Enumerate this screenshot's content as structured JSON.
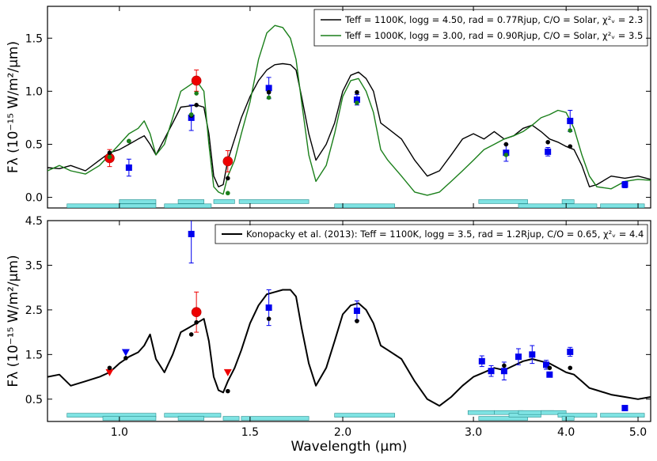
{
  "chart_data": [
    {
      "type": "line",
      "panel": "top",
      "ylabel": "Fλ (10⁻¹⁵ W/m²/μm)",
      "ylim": [
        -0.1,
        1.8
      ],
      "yticks": [
        0.0,
        0.5,
        1.0,
        1.5
      ],
      "ytick_labels": [
        "0.0",
        "0.5",
        "1.0",
        "1.5"
      ],
      "xscale": "log",
      "xlim": [
        0.8,
        5.2
      ],
      "legend_position": "top-right",
      "series": [
        {
          "name": "Teff = 1100K, logg = 4.50, rad = 0.77Rjup, C/O = Solar, χ²ᵥ = 2.3",
          "color": "#000000",
          "x": [
            0.8,
            0.83,
            0.86,
            0.9,
            0.94,
            0.97,
            1.0,
            1.03,
            1.06,
            1.08,
            1.1,
            1.12,
            1.15,
            1.18,
            1.21,
            1.24,
            1.27,
            1.3,
            1.32,
            1.34,
            1.36,
            1.38,
            1.4,
            1.43,
            1.46,
            1.5,
            1.54,
            1.58,
            1.62,
            1.66,
            1.7,
            1.73,
            1.76,
            1.8,
            1.84,
            1.9,
            1.95,
            2.0,
            2.05,
            2.1,
            2.15,
            2.2,
            2.25,
            2.3,
            2.4,
            2.5,
            2.6,
            2.7,
            2.8,
            2.9,
            3.0,
            3.1,
            3.2,
            3.3,
            3.4,
            3.5,
            3.6,
            3.7,
            3.8,
            3.9,
            4.0,
            4.1,
            4.2,
            4.3,
            4.4,
            4.6,
            4.8,
            5.0,
            5.2
          ],
          "y": [
            0.28,
            0.27,
            0.3,
            0.25,
            0.35,
            0.42,
            0.45,
            0.5,
            0.55,
            0.58,
            0.5,
            0.4,
            0.55,
            0.7,
            0.85,
            0.86,
            0.87,
            0.85,
            0.6,
            0.2,
            0.1,
            0.12,
            0.35,
            0.55,
            0.75,
            0.95,
            1.1,
            1.2,
            1.25,
            1.26,
            1.25,
            1.2,
            0.95,
            0.6,
            0.35,
            0.5,
            0.7,
            1.0,
            1.15,
            1.18,
            1.12,
            1.0,
            0.7,
            0.65,
            0.55,
            0.35,
            0.2,
            0.25,
            0.4,
            0.55,
            0.6,
            0.55,
            0.62,
            0.55,
            0.58,
            0.65,
            0.68,
            0.62,
            0.55,
            0.52,
            0.48,
            0.45,
            0.3,
            0.1,
            0.12,
            0.2,
            0.18,
            0.2,
            0.17
          ]
        },
        {
          "name": "Teff = 1000K, logg = 3.00, rad = 0.90Rjup, C/O = Solar, χ²ᵥ = 3.5",
          "color": "#1a7f1a",
          "x": [
            0.8,
            0.83,
            0.86,
            0.9,
            0.94,
            0.97,
            1.0,
            1.03,
            1.06,
            1.08,
            1.1,
            1.12,
            1.15,
            1.18,
            1.21,
            1.24,
            1.27,
            1.3,
            1.32,
            1.34,
            1.36,
            1.38,
            1.4,
            1.43,
            1.46,
            1.5,
            1.54,
            1.58,
            1.62,
            1.66,
            1.7,
            1.73,
            1.76,
            1.8,
            1.84,
            1.9,
            1.95,
            2.0,
            2.05,
            2.1,
            2.15,
            2.2,
            2.25,
            2.3,
            2.4,
            2.5,
            2.6,
            2.7,
            2.8,
            2.9,
            3.0,
            3.1,
            3.2,
            3.3,
            3.4,
            3.5,
            3.6,
            3.7,
            3.8,
            3.9,
            4.0,
            4.1,
            4.2,
            4.3,
            4.4,
            4.6,
            4.8,
            5.0,
            5.2
          ],
          "y": [
            0.25,
            0.3,
            0.25,
            0.22,
            0.3,
            0.4,
            0.5,
            0.6,
            0.65,
            0.72,
            0.6,
            0.4,
            0.5,
            0.75,
            1.0,
            1.05,
            1.1,
            1.0,
            0.5,
            0.1,
            0.05,
            0.03,
            0.2,
            0.35,
            0.6,
            0.9,
            1.3,
            1.55,
            1.62,
            1.6,
            1.5,
            1.3,
            0.9,
            0.4,
            0.15,
            0.3,
            0.6,
            0.95,
            1.1,
            1.12,
            1.0,
            0.8,
            0.45,
            0.35,
            0.2,
            0.05,
            0.02,
            0.05,
            0.15,
            0.25,
            0.35,
            0.45,
            0.5,
            0.55,
            0.58,
            0.62,
            0.68,
            0.75,
            0.78,
            0.82,
            0.8,
            0.65,
            0.4,
            0.2,
            0.1,
            0.08,
            0.15,
            0.17,
            0.16
          ]
        }
      ],
      "points": [
        {
          "label": "blue squares",
          "color": "#0000ee",
          "x": [
            1.03,
            1.25,
            1.59,
            2.09,
            3.32,
            3.78,
            4.05,
            4.8
          ],
          "y": [
            0.28,
            0.75,
            1.03,
            0.92,
            0.42,
            0.43,
            0.72,
            0.12
          ],
          "err": [
            0.08,
            0.12,
            0.1,
            0.05,
            0.08,
            0.04,
            0.1,
            0.03
          ]
        },
        {
          "label": "red circles",
          "color": "#ee0000",
          "x": [
            0.97,
            1.27,
            1.4
          ],
          "y": [
            0.37,
            1.1,
            0.34
          ],
          "err": [
            0.08,
            0.1,
            0.1
          ]
        },
        {
          "label": "black dots",
          "color": "#000000",
          "x": [
            0.97,
            1.03,
            1.25,
            1.27,
            1.4,
            1.59,
            2.09,
            3.32,
            3.78,
            4.05
          ],
          "y": [
            0.42,
            0.53,
            0.77,
            0.87,
            0.18,
            0.99,
            0.99,
            0.5,
            0.52,
            0.48
          ]
        },
        {
          "label": "green dots",
          "color": "#1a7f1a",
          "x": [
            0.97,
            1.03,
            1.25,
            1.27,
            1.4,
            1.59,
            2.09,
            3.32,
            4.05
          ],
          "y": [
            0.38,
            0.53,
            0.78,
            0.98,
            0.04,
            0.94,
            0.89,
            0.4,
            0.63
          ]
        }
      ],
      "filter_bands": [
        {
          "x0": 0.85,
          "x1": 1.12,
          "y": -0.08
        },
        {
          "x0": 1.0,
          "x1": 1.12,
          "y": -0.04
        },
        {
          "x0": 1.15,
          "x1": 1.33,
          "y": -0.08
        },
        {
          "x0": 1.2,
          "x1": 1.3,
          "y": -0.04
        },
        {
          "x0": 1.34,
          "x1": 1.43,
          "y": -0.04
        },
        {
          "x0": 1.45,
          "x1": 1.8,
          "y": -0.04
        },
        {
          "x0": 1.95,
          "x1": 2.35,
          "y": -0.08
        },
        {
          "x0": 3.05,
          "x1": 3.55,
          "y": -0.04
        },
        {
          "x0": 3.45,
          "x1": 4.4,
          "y": -0.08
        },
        {
          "x0": 3.95,
          "x1": 4.1,
          "y": -0.04
        },
        {
          "x0": 4.45,
          "x1": 5.1,
          "y": -0.08
        }
      ]
    },
    {
      "type": "line",
      "panel": "bottom",
      "xlabel": "Wavelength (μm)",
      "ylabel": "Fλ (10⁻¹⁵ W/m²/μm)",
      "ylim": [
        0.0,
        4.5
      ],
      "yticks": [
        0.5,
        1.5,
        2.5,
        3.5,
        4.5
      ],
      "ytick_labels": [
        "0.5",
        "1.5",
        "2.5",
        "3.5",
        "4.5"
      ],
      "xscale": "log",
      "xlim": [
        0.8,
        5.2
      ],
      "xticks": [
        1.0,
        1.5,
        2.0,
        3.0,
        4.0,
        5.0
      ],
      "xtick_labels": [
        "1.0",
        "1.5",
        "2.0",
        "3.0",
        "4.0",
        "5.0"
      ],
      "legend_position": "top-right",
      "series": [
        {
          "name": "Konopacky et al. (2013): Teff = 1100K, logg = 3.5, rad = 1.2Rjup, C/O = 0.65, χ²ᵥ = 4.4",
          "color": "#000000",
          "x": [
            0.8,
            0.83,
            0.86,
            0.9,
            0.94,
            0.97,
            1.0,
            1.03,
            1.06,
            1.08,
            1.1,
            1.12,
            1.15,
            1.18,
            1.21,
            1.24,
            1.27,
            1.3,
            1.32,
            1.34,
            1.36,
            1.38,
            1.4,
            1.43,
            1.46,
            1.5,
            1.54,
            1.58,
            1.62,
            1.66,
            1.7,
            1.73,
            1.76,
            1.8,
            1.84,
            1.9,
            1.95,
            2.0,
            2.05,
            2.1,
            2.15,
            2.2,
            2.25,
            2.3,
            2.4,
            2.5,
            2.6,
            2.7,
            2.8,
            2.9,
            3.0,
            3.1,
            3.2,
            3.3,
            3.4,
            3.5,
            3.6,
            3.7,
            3.8,
            3.9,
            4.0,
            4.1,
            4.2,
            4.3,
            4.4,
            4.6,
            4.8,
            5.0,
            5.2
          ],
          "y": [
            1.0,
            1.05,
            0.8,
            0.9,
            1.0,
            1.1,
            1.3,
            1.45,
            1.55,
            1.7,
            1.95,
            1.4,
            1.1,
            1.5,
            2.0,
            2.1,
            2.2,
            2.3,
            1.8,
            1.0,
            0.7,
            0.65,
            0.9,
            1.2,
            1.6,
            2.2,
            2.6,
            2.85,
            2.9,
            2.95,
            2.95,
            2.8,
            2.1,
            1.3,
            0.8,
            1.2,
            1.8,
            2.4,
            2.6,
            2.65,
            2.5,
            2.2,
            1.7,
            1.6,
            1.4,
            0.9,
            0.5,
            0.35,
            0.55,
            0.8,
            1.0,
            1.1,
            1.2,
            1.15,
            1.25,
            1.35,
            1.4,
            1.35,
            1.3,
            1.2,
            1.1,
            1.05,
            0.9,
            0.75,
            0.7,
            0.6,
            0.55,
            0.5,
            0.55
          ]
        }
      ],
      "points": [
        {
          "label": "blue squares",
          "color": "#0000ee",
          "x": [
            1.25,
            1.59,
            2.09,
            3.08,
            3.17,
            3.3,
            3.45,
            3.6,
            3.76,
            3.8,
            4.05,
            4.8
          ],
          "y": [
            4.2,
            2.55,
            2.48,
            1.35,
            1.13,
            1.13,
            1.45,
            1.5,
            1.27,
            1.05,
            1.56,
            0.3
          ],
          "err": [
            0.65,
            0.4,
            0.22,
            0.12,
            0.12,
            0.2,
            0.18,
            0.2,
            0.1,
            0.05,
            0.1,
            0.03
          ]
        },
        {
          "label": "red circles",
          "color": "#ee0000",
          "x": [
            1.27
          ],
          "y": [
            2.45
          ],
          "err": [
            0.45
          ]
        },
        {
          "label": "red triangles (upper limits)",
          "color": "#ee0000",
          "x": [
            0.97,
            1.4
          ],
          "y": [
            1.1,
            1.1
          ]
        },
        {
          "label": "blue triangles (upper limits)",
          "color": "#0000ee",
          "x": [
            1.02
          ],
          "y": [
            1.55
          ]
        },
        {
          "label": "black dots",
          "color": "#000000",
          "x": [
            0.97,
            1.02,
            1.25,
            1.27,
            1.4,
            1.59,
            2.09,
            3.3,
            3.8,
            4.05
          ],
          "y": [
            1.2,
            1.42,
            1.95,
            2.22,
            0.68,
            2.3,
            2.25,
            1.25,
            1.2,
            1.2
          ]
        }
      ],
      "filter_bands": [
        {
          "x0": 0.85,
          "x1": 1.12,
          "y": 0.14
        },
        {
          "x0": 0.95,
          "x1": 1.12,
          "y": 0.07
        },
        {
          "x0": 1.15,
          "x1": 1.37,
          "y": 0.14
        },
        {
          "x0": 1.2,
          "x1": 1.3,
          "y": 0.07
        },
        {
          "x0": 1.38,
          "x1": 1.45,
          "y": 0.07
        },
        {
          "x0": 1.46,
          "x1": 1.8,
          "y": 0.07
        },
        {
          "x0": 1.95,
          "x1": 2.35,
          "y": 0.14
        },
        {
          "x0": 2.95,
          "x1": 3.2,
          "y": 0.2
        },
        {
          "x0": 3.05,
          "x1": 3.55,
          "y": 0.07
        },
        {
          "x0": 3.2,
          "x1": 3.5,
          "y": 0.2
        },
        {
          "x0": 3.35,
          "x1": 3.7,
          "y": 0.14
        },
        {
          "x0": 3.45,
          "x1": 3.85,
          "y": 0.2
        },
        {
          "x0": 3.7,
          "x1": 4.0,
          "y": 0.2
        },
        {
          "x0": 3.9,
          "x1": 4.4,
          "y": 0.14
        },
        {
          "x0": 3.95,
          "x1": 4.1,
          "y": 0.07
        },
        {
          "x0": 4.45,
          "x1": 5.1,
          "y": 0.14
        }
      ]
    }
  ]
}
